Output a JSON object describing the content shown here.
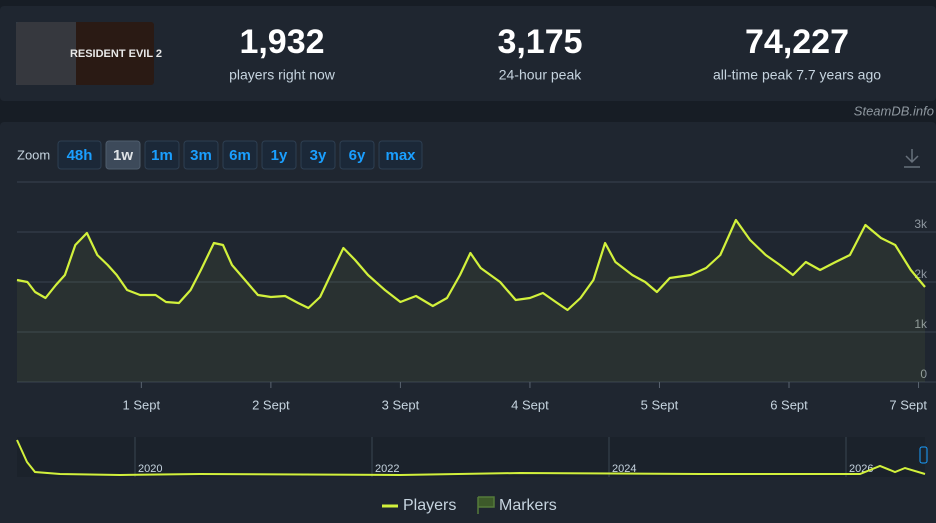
{
  "header": {
    "image_text": "RESIDENT EVIL 2",
    "stats": [
      {
        "value": "1,932",
        "label": "players right now"
      },
      {
        "value": "3,175",
        "label": "24-hour peak"
      },
      {
        "value": "74,227",
        "label": "all-time peak 7.7 years ago"
      }
    ]
  },
  "watermark": "SteamDB.info",
  "zoom": {
    "label": "Zoom",
    "options": [
      "48h",
      "1w",
      "1m",
      "3m",
      "6m",
      "1y",
      "3y",
      "6y",
      "max"
    ],
    "active": 1
  },
  "chart_data": {
    "type": "line",
    "x": [
      0.04,
      0.12,
      0.18,
      0.26,
      0.34,
      0.41,
      0.49,
      0.58,
      0.66,
      0.74,
      0.81,
      0.89,
      0.99,
      1.11,
      1.19,
      1.29,
      1.38,
      1.46,
      1.56,
      1.63,
      1.7,
      1.8,
      1.9,
      2.0,
      2.11,
      2.21,
      2.29,
      2.38,
      2.46,
      2.56,
      2.65,
      2.75,
      2.88,
      3.0,
      3.12,
      3.25,
      3.36,
      3.46,
      3.54,
      3.62,
      3.77,
      3.89,
      4.0,
      4.1,
      4.2,
      4.29,
      4.39,
      4.49,
      4.58,
      4.66,
      4.79,
      4.89,
      4.98,
      5.08,
      5.24,
      5.36,
      5.47,
      5.59,
      5.7,
      5.82,
      5.93,
      6.03,
      6.13,
      6.24,
      6.36,
      6.47,
      6.59,
      6.71,
      6.82,
      6.94,
      7.05
    ],
    "series": [
      {
        "name": "Players",
        "color": "#d2f13c",
        "values": [
          2040,
          2000,
          1800,
          1680,
          1940,
          2140,
          2740,
          2980,
          2540,
          2340,
          2140,
          1840,
          1740,
          1740,
          1600,
          1580,
          1840,
          2240,
          2780,
          2740,
          2340,
          2040,
          1740,
          1700,
          1720,
          1580,
          1480,
          1700,
          2140,
          2680,
          2440,
          2140,
          1840,
          1600,
          1720,
          1520,
          1680,
          2140,
          2580,
          2280,
          2000,
          1640,
          1680,
          1780,
          1600,
          1440,
          1680,
          2040,
          2780,
          2400,
          2140,
          2000,
          1800,
          2080,
          2140,
          2280,
          2540,
          3240,
          2840,
          2540,
          2340,
          2140,
          2400,
          2240,
          2400,
          2540,
          3140,
          2880,
          2740,
          2240,
          1900
        ]
      }
    ],
    "markers_label": "Markers",
    "xlim": [
      0.04,
      7.05
    ],
    "xticks": [
      {
        "value": 1,
        "label": "1 Sept"
      },
      {
        "value": 2,
        "label": "2 Sept"
      },
      {
        "value": 3,
        "label": "3 Sept"
      },
      {
        "value": 4,
        "label": "4 Sept"
      },
      {
        "value": 5,
        "label": "5 Sept"
      },
      {
        "value": 6,
        "label": "6 Sept"
      },
      {
        "value": 7,
        "label": "7 Sept"
      }
    ],
    "ylim": [
      0,
      4000
    ],
    "yticks": [
      0,
      {
        "value": 1000,
        "label": "1k"
      },
      {
        "value": 2000,
        "label": "2k"
      },
      {
        "value": 3000,
        "label": "3k"
      }
    ],
    "grid": true
  },
  "navigator": {
    "labels": [
      "2020",
      "2022",
      "2024",
      "2026"
    ]
  }
}
